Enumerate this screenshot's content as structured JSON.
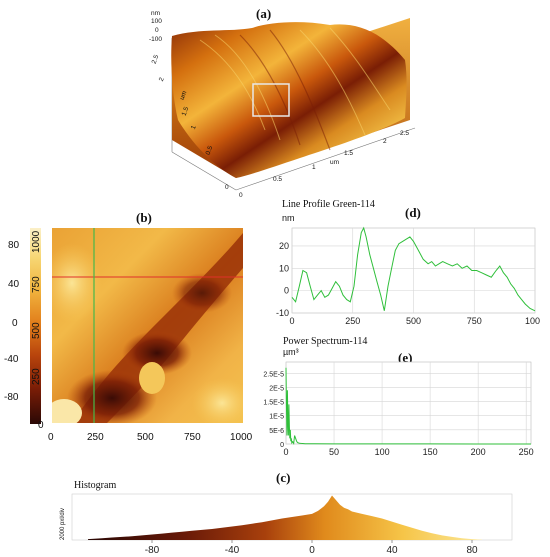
{
  "panel_labels": {
    "a": "(a)",
    "b": "(b)",
    "c": "(c)",
    "d": "(d)",
    "e": "(e)"
  },
  "panel_a": {
    "z_unit": "nm",
    "z_ticks": [
      "100",
      "0",
      "-100"
    ],
    "y_axis_unit": "um",
    "y_ticks": [
      "2.5",
      "2",
      "1.5",
      "1",
      "0.5",
      "0"
    ],
    "x_axis_unit": "um",
    "x_ticks": [
      "0",
      "0.5",
      "1",
      "1.5",
      "2",
      "2.5"
    ]
  },
  "panel_b": {
    "colorbar_ticks": [
      "80",
      "40",
      "0",
      "-40",
      "-80"
    ],
    "y_ticks": [
      "1000",
      "750",
      "500",
      "250",
      "0"
    ],
    "x_ticks": [
      "0",
      "250",
      "500",
      "750",
      "1000"
    ],
    "colors": {
      "light": "#f7d774",
      "mid": "#e58a1f",
      "dark": "#6a1a08",
      "deep": "#2a0805",
      "marker_h": "#e0302a",
      "marker_v": "#46b84a"
    }
  },
  "chart_data": [
    {
      "type": "line",
      "title": "Line Profile Green-114",
      "ylabel": "nm",
      "xlim": [
        0,
        1000
      ],
      "ylim": [
        -10,
        28
      ],
      "x_ticks": [
        "0",
        "250",
        "500",
        "750",
        "1000"
      ],
      "y_ticks": [
        "20",
        "10",
        "0",
        "-10"
      ],
      "series": [
        {
          "color": "#2fbf3a",
          "x": [
            0,
            15,
            30,
            45,
            60,
            75,
            90,
            105,
            120,
            135,
            150,
            165,
            180,
            195,
            210,
            225,
            240,
            255,
            270,
            285,
            295,
            305,
            320,
            335,
            350,
            365,
            380,
            395,
            410,
            425,
            440,
            455,
            470,
            485,
            500,
            520,
            540,
            560,
            575,
            590,
            605,
            620,
            640,
            660,
            680,
            700,
            720,
            740,
            760,
            780,
            800,
            820,
            840,
            855,
            870,
            885,
            900,
            915,
            930,
            945,
            960,
            980,
            1000
          ],
          "y": [
            -3,
            -5,
            2,
            9,
            8,
            2,
            -4,
            -2,
            0,
            -3,
            -2,
            1,
            4,
            2,
            -2,
            -4,
            -5,
            2,
            16,
            26,
            28,
            24,
            16,
            10,
            4,
            -2,
            -9,
            2,
            10,
            18,
            21,
            22,
            23,
            24,
            22,
            18,
            14,
            12,
            13,
            11,
            12,
            13,
            12,
            11,
            12,
            10,
            11,
            9,
            9,
            8,
            7,
            6,
            9,
            11,
            8,
            6,
            3,
            1,
            -2,
            -4,
            -6,
            -8,
            -9
          ]
        }
      ]
    },
    {
      "type": "line",
      "title": "Power Spectrum-114",
      "ylabel": "µm³",
      "xlim": [
        0,
        255
      ],
      "ylim": [
        0,
        2.9e-05
      ],
      "x_ticks": [
        "0",
        "50",
        "100",
        "150",
        "200",
        "250"
      ],
      "y_ticks": [
        "2.5E-5",
        "2E-5",
        "1.5E-5",
        "1E-5",
        "5E-6",
        "0"
      ],
      "series": [
        {
          "color": "#2fbf3a",
          "x": [
            0,
            0.5,
            1,
            1.5,
            2,
            2.5,
            3,
            3.5,
            4,
            4.5,
            5,
            5.5,
            6,
            7,
            8,
            9,
            10,
            11,
            12,
            14,
            16,
            20,
            30,
            50,
            100,
            150,
            200,
            255
          ],
          "y": [
            2.7e-05,
            1.2e-05,
            3e-06,
            1.9e-05,
            8e-06,
            3e-06,
            1.4e-05,
            6e-06,
            2e-06,
            5e-06,
            1e-06,
            2e-06,
            4e-07,
            8e-07,
            2e-07,
            3e-06,
            2e-06,
            1e-06,
            5e-07,
            3e-07,
            2e-07,
            1e-07,
            1e-07,
            5e-08,
            3e-08,
            2e-08,
            1e-08,
            1e-08
          ]
        }
      ]
    },
    {
      "type": "area",
      "title": "Histogram",
      "ylabel": "2000 pxl/div",
      "xlim": [
        -120,
        100
      ],
      "x_ticks": [
        "-80",
        "-40",
        "0",
        "40",
        "80"
      ],
      "x": [
        -112,
        -105,
        -100,
        -95,
        -90,
        -85,
        -80,
        -75,
        -70,
        -65,
        -60,
        -55,
        -50,
        -45,
        -40,
        -35,
        -30,
        -25,
        -20,
        -15,
        -10,
        -5,
        0,
        3,
        6,
        8,
        10,
        12,
        14,
        16,
        18,
        20,
        25,
        30,
        35,
        40,
        45,
        50,
        55,
        60,
        65,
        70,
        75,
        80,
        85
      ],
      "y": [
        0.3,
        0.6,
        0.8,
        1.0,
        1.2,
        1.5,
        1.8,
        2.1,
        2.4,
        2.7,
        3.0,
        3.3,
        3.6,
        4.0,
        4.4,
        4.8,
        5.3,
        5.8,
        6.4,
        7.0,
        7.5,
        8.0,
        8.5,
        9.5,
        11.0,
        12.5,
        14.5,
        13.0,
        11.5,
        10.5,
        10.0,
        9.3,
        8.5,
        7.8,
        7.0,
        6.0,
        5.0,
        4.0,
        3.0,
        2.2,
        1.5,
        1.0,
        0.6,
        0.3,
        0.1
      ]
    }
  ]
}
